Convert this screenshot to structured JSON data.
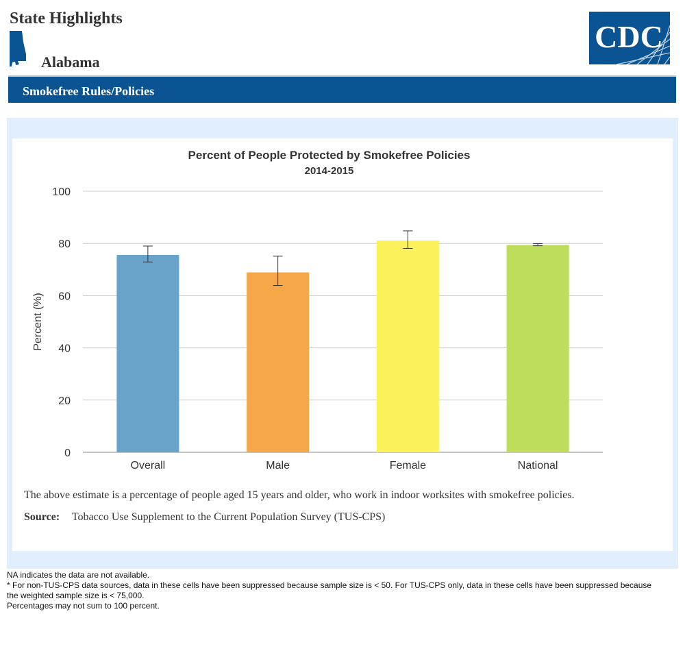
{
  "header": {
    "title": "State Highlights",
    "state": "Alabama",
    "logo_text": "CDC"
  },
  "section": {
    "title": "Smokefree Rules/Policies"
  },
  "chart_data": {
    "type": "bar",
    "title": "Percent of People Protected by Smokefree Policies",
    "subtitle": "2014-2015",
    "ylabel": "Percent (%)",
    "xlabel": "",
    "ylim": [
      0,
      100
    ],
    "yticks": [
      0,
      20,
      40,
      60,
      80,
      100
    ],
    "grid": true,
    "categories": [
      "Overall",
      "Male",
      "Female",
      "National"
    ],
    "values": [
      75.6,
      68.9,
      81.1,
      79.4
    ],
    "error_low": [
      72.9,
      63.9,
      78.1,
      79.1
    ],
    "error_high": [
      79.0,
      75.1,
      84.8,
      79.9
    ],
    "colors": [
      "#6aa3ca",
      "#f6a748",
      "#fbf25b",
      "#bedd5c"
    ]
  },
  "notes": {
    "description": "The above estimate is a percentage of people aged 15 years and older, who work in indoor worksites with smokefree policies.",
    "source_label": "Source:",
    "source_text": "Tobacco Use Supplement to the Current Population Survey (TUS-CPS)"
  },
  "footnotes": [
    "NA indicates the data are not available.",
    "* For non-TUS-CPS data sources, data in these cells have been suppressed because sample size is < 50. For TUS-CPS only, data in these cells have been suppressed because the weighted sample size is < 75,000.",
    "Percentages may not sum to 100 percent."
  ],
  "colors": {
    "brand_blue": "#0a5494",
    "panel_bg": "#e1eefb"
  }
}
